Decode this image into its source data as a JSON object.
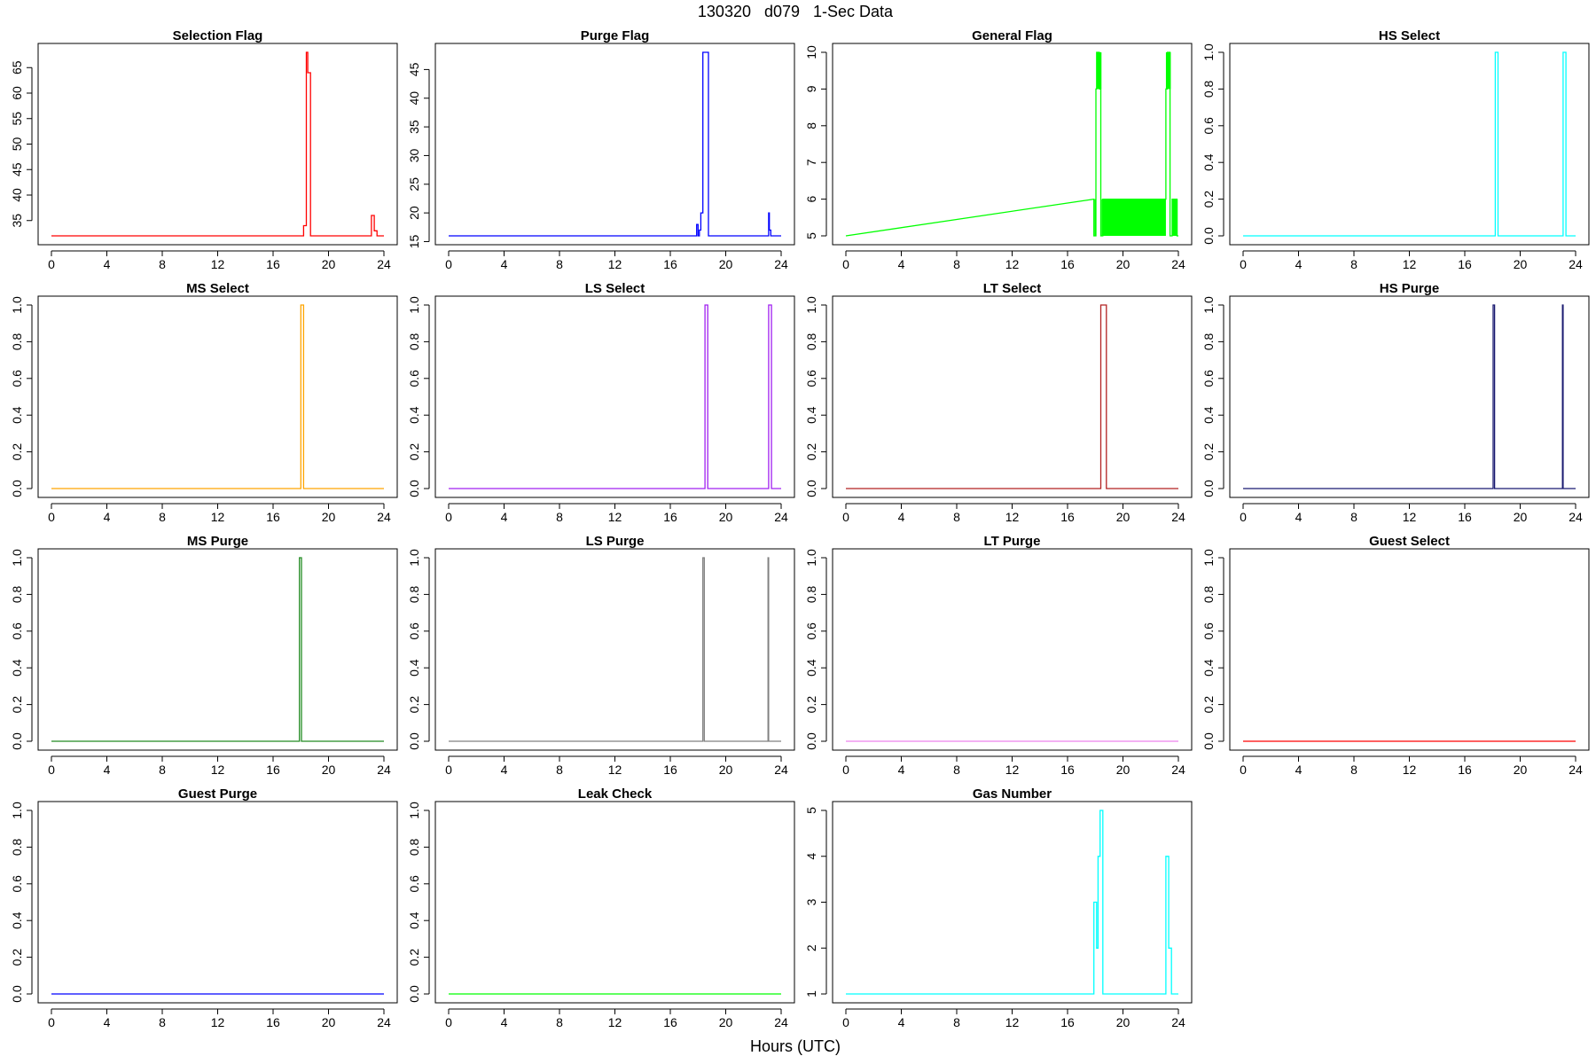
{
  "figure_title": "130320   d079   1-Sec Data",
  "xlabel": "Hours (UTC)",
  "x_ticks": [
    0,
    4,
    8,
    12,
    16,
    20,
    24
  ],
  "chart_data": [
    {
      "type": "line",
      "title": "Selection Flag",
      "color": "#ff0000",
      "xlim": [
        0,
        24
      ],
      "ylim": [
        32,
        68
      ],
      "y_ticks": [
        35,
        40,
        45,
        50,
        55,
        60,
        65
      ],
      "x": [
        0,
        18.2,
        18.2,
        18.4,
        18.4,
        18.5,
        18.5,
        18.7,
        18.7,
        18.8,
        18.8,
        23.1,
        23.1,
        23.3,
        23.3,
        23.5,
        23.5,
        24
      ],
      "y": [
        32,
        32,
        34,
        34,
        68,
        68,
        64,
        64,
        32,
        32,
        32,
        32,
        36,
        36,
        33,
        33,
        32,
        32
      ]
    },
    {
      "type": "line",
      "title": "Purge Flag",
      "color": "#0000ff",
      "xlim": [
        0,
        24
      ],
      "ylim": [
        16,
        48
      ],
      "y_ticks": [
        15,
        20,
        25,
        30,
        35,
        40,
        45
      ],
      "x": [
        0,
        17.9,
        17.9,
        18.0,
        18.0,
        18.1,
        18.1,
        18.2,
        18.2,
        18.35,
        18.35,
        18.75,
        18.75,
        23.1,
        23.1,
        23.15,
        23.15,
        23.25,
        23.25,
        24
      ],
      "y": [
        16,
        16,
        18,
        18,
        16,
        16,
        17,
        17,
        20,
        20,
        48,
        48,
        16,
        16,
        20,
        20,
        17,
        17,
        16,
        16
      ]
    },
    {
      "type": "line",
      "title": "General Flag",
      "color": "#00ff00",
      "xlim": [
        0,
        24
      ],
      "ylim": [
        5,
        10
      ],
      "y_ticks": [
        5,
        6,
        7,
        8,
        9,
        10
      ],
      "x": [
        0,
        17.9,
        17.9,
        18.05,
        18.05,
        18.1,
        18.1,
        18.3,
        18.3,
        18.4,
        18.4,
        18.55,
        18.55,
        23.1,
        23.1,
        23.2,
        23.2,
        23.4,
        23.4,
        23.55,
        23.55,
        23.9,
        23.9,
        24
      ],
      "y": [
        5,
        6,
        5,
        5,
        9,
        9,
        10,
        10,
        9,
        9,
        5,
        5,
        6,
        6,
        9,
        9,
        10,
        10,
        5,
        5,
        6,
        6,
        5,
        5
      ],
      "fill_blocks": [
        [
          17.95,
          18.05,
          5,
          6
        ],
        [
          18.1,
          18.45,
          9,
          10
        ],
        [
          18.45,
          23.1,
          5,
          6
        ],
        [
          23.1,
          23.45,
          9,
          10
        ],
        [
          23.55,
          23.95,
          5,
          6
        ]
      ]
    },
    {
      "type": "line",
      "title": "HS Select",
      "color": "#00ffff",
      "xlim": [
        0,
        24
      ],
      "ylim": [
        0,
        1
      ],
      "y_ticks": [
        0,
        0.2,
        0.4,
        0.6,
        0.8,
        1
      ],
      "y_tick_labels": [
        "0.0",
        "0.2",
        "0.4",
        "0.6",
        "0.8",
        "1.0"
      ],
      "x": [
        0,
        18.2,
        18.2,
        18.4,
        18.4,
        23.1,
        23.1,
        23.3,
        23.3,
        24
      ],
      "y": [
        0,
        0,
        1,
        1,
        0,
        0,
        1,
        1,
        0,
        0
      ]
    },
    {
      "type": "line",
      "title": "MS Select",
      "color": "#ffa500",
      "xlim": [
        0,
        24
      ],
      "ylim": [
        0,
        1
      ],
      "y_ticks": [
        0,
        0.2,
        0.4,
        0.6,
        0.8,
        1
      ],
      "y_tick_labels": [
        "0.0",
        "0.2",
        "0.4",
        "0.6",
        "0.8",
        "1.0"
      ],
      "x": [
        0,
        18.0,
        18.0,
        18.2,
        18.2,
        24
      ],
      "y": [
        0,
        0,
        1,
        1,
        0,
        0
      ]
    },
    {
      "type": "line",
      "title": "LS Select",
      "color": "#a020f0",
      "xlim": [
        0,
        24
      ],
      "ylim": [
        0,
        1
      ],
      "y_ticks": [
        0,
        0.2,
        0.4,
        0.6,
        0.8,
        1
      ],
      "y_tick_labels": [
        "0.0",
        "0.2",
        "0.4",
        "0.6",
        "0.8",
        "1.0"
      ],
      "x": [
        0,
        18.5,
        18.5,
        18.7,
        18.7,
        23.1,
        23.1,
        23.3,
        23.3,
        24
      ],
      "y": [
        0,
        0,
        1,
        1,
        0,
        0,
        1,
        1,
        0,
        0
      ]
    },
    {
      "type": "line",
      "title": "LT Select",
      "color": "#b22222",
      "xlim": [
        0,
        24
      ],
      "ylim": [
        0,
        1
      ],
      "y_ticks": [
        0,
        0.2,
        0.4,
        0.6,
        0.8,
        1
      ],
      "y_tick_labels": [
        "0.0",
        "0.2",
        "0.4",
        "0.6",
        "0.8",
        "1.0"
      ],
      "x": [
        0,
        18.4,
        18.4,
        18.8,
        18.8,
        24
      ],
      "y": [
        0,
        0,
        1,
        1,
        0,
        0
      ]
    },
    {
      "type": "line",
      "title": "HS Purge",
      "color": "#191970",
      "xlim": [
        0,
        24
      ],
      "ylim": [
        0,
        1
      ],
      "y_ticks": [
        0,
        0.2,
        0.4,
        0.6,
        0.8,
        1
      ],
      "y_tick_labels": [
        "0.0",
        "0.2",
        "0.4",
        "0.6",
        "0.8",
        "1.0"
      ],
      "x": [
        0,
        18.05,
        18.05,
        18.15,
        18.15,
        23.05,
        23.05,
        23.1,
        23.1,
        24
      ],
      "y": [
        0,
        0,
        1,
        1,
        0,
        0,
        1,
        1,
        0,
        0
      ]
    },
    {
      "type": "line",
      "title": "MS Purge",
      "color": "#228b22",
      "xlim": [
        0,
        24
      ],
      "ylim": [
        0,
        1
      ],
      "y_ticks": [
        0,
        0.2,
        0.4,
        0.6,
        0.8,
        1
      ],
      "y_tick_labels": [
        "0.0",
        "0.2",
        "0.4",
        "0.6",
        "0.8",
        "1.0"
      ],
      "x": [
        0,
        17.9,
        17.9,
        18.05,
        18.05,
        24
      ],
      "y": [
        0,
        0,
        1,
        1,
        0,
        0
      ]
    },
    {
      "type": "line",
      "title": "LS Purge",
      "color": "#808080",
      "xlim": [
        0,
        24
      ],
      "ylim": [
        0,
        1
      ],
      "y_ticks": [
        0,
        0.2,
        0.4,
        0.6,
        0.8,
        1
      ],
      "y_tick_labels": [
        "0.0",
        "0.2",
        "0.4",
        "0.6",
        "0.8",
        "1.0"
      ],
      "x": [
        0,
        18.35,
        18.35,
        18.45,
        18.45,
        23.05,
        23.05,
        23.1,
        23.1,
        24
      ],
      "y": [
        0,
        0,
        1,
        1,
        0,
        0,
        1,
        1,
        0,
        0
      ]
    },
    {
      "type": "line",
      "title": "LT Purge",
      "color": "#ee82ee",
      "xlim": [
        0,
        24
      ],
      "ylim": [
        0,
        1
      ],
      "y_ticks": [
        0,
        0.2,
        0.4,
        0.6,
        0.8,
        1
      ],
      "y_tick_labels": [
        "0.0",
        "0.2",
        "0.4",
        "0.6",
        "0.8",
        "1.0"
      ],
      "x": [
        0,
        24
      ],
      "y": [
        0,
        0
      ]
    },
    {
      "type": "line",
      "title": "Guest Select",
      "color": "#ff0000",
      "xlim": [
        0,
        24
      ],
      "ylim": [
        0,
        1
      ],
      "y_ticks": [
        0,
        0.2,
        0.4,
        0.6,
        0.8,
        1
      ],
      "y_tick_labels": [
        "0.0",
        "0.2",
        "0.4",
        "0.6",
        "0.8",
        "1.0"
      ],
      "x": [
        0,
        24
      ],
      "y": [
        0,
        0
      ]
    },
    {
      "type": "line",
      "title": "Guest Purge",
      "color": "#0000ff",
      "xlim": [
        0,
        24
      ],
      "ylim": [
        0,
        1
      ],
      "y_ticks": [
        0,
        0.2,
        0.4,
        0.6,
        0.8,
        1
      ],
      "y_tick_labels": [
        "0.0",
        "0.2",
        "0.4",
        "0.6",
        "0.8",
        "1.0"
      ],
      "x": [
        0,
        24
      ],
      "y": [
        0,
        0
      ]
    },
    {
      "type": "line",
      "title": "Leak Check",
      "color": "#00ff00",
      "xlim": [
        0,
        24
      ],
      "ylim": [
        0,
        1
      ],
      "y_ticks": [
        0,
        0.2,
        0.4,
        0.6,
        0.8,
        1
      ],
      "y_tick_labels": [
        "0.0",
        "0.2",
        "0.4",
        "0.6",
        "0.8",
        "1.0"
      ],
      "x": [
        0,
        24
      ],
      "y": [
        0,
        0
      ]
    },
    {
      "type": "line",
      "title": "Gas Number",
      "color": "#00ffff",
      "xlim": [
        0,
        24
      ],
      "ylim": [
        1,
        5
      ],
      "y_ticks": [
        1,
        2,
        3,
        4,
        5
      ],
      "x": [
        0,
        17.9,
        17.9,
        18.1,
        18.1,
        18.2,
        18.2,
        18.35,
        18.35,
        18.55,
        18.55,
        18.7,
        18.7,
        23.1,
        23.1,
        23.3,
        23.3,
        23.5,
        23.5,
        24
      ],
      "y": [
        1,
        1,
        3,
        3,
        2,
        2,
        4,
        4,
        5,
        5,
        1,
        1,
        1,
        1,
        4,
        4,
        2,
        2,
        1,
        1
      ]
    }
  ]
}
